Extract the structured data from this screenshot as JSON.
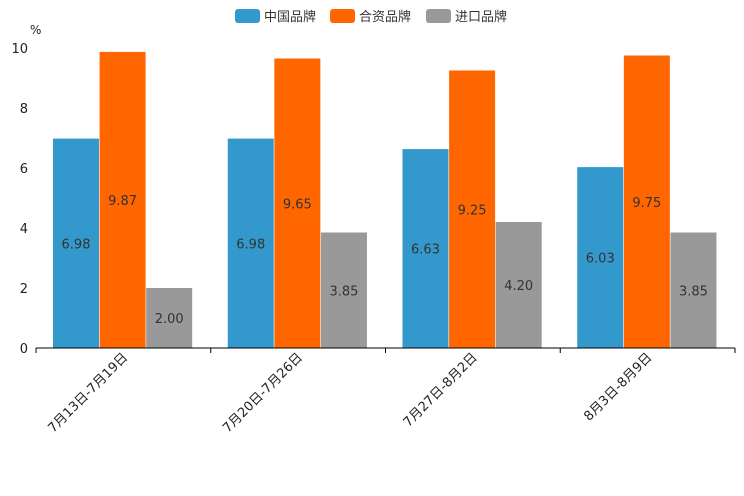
{
  "chart_data": {
    "type": "bar",
    "title": "",
    "xlabel": "",
    "ylabel": "",
    "unit": "%",
    "ylim": [
      0,
      10
    ],
    "yticks": [
      "0",
      "2",
      "4",
      "6",
      "8",
      "10"
    ],
    "categories": [
      "7月13日-7月19日",
      "7月20日-7月26日",
      "7月27日-8月2日",
      "8月3日-8月9日"
    ],
    "series": [
      {
        "name": "中国品牌",
        "color": "#3399cc",
        "values": [
          6.98,
          6.98,
          6.63,
          6.03
        ],
        "labels": [
          "6.98",
          "6.98",
          "6.63",
          "6.03"
        ]
      },
      {
        "name": "合资品牌",
        "color": "#ff6600",
        "values": [
          9.87,
          9.65,
          9.25,
          9.75
        ],
        "labels": [
          "9.87",
          "9.65",
          "9.25",
          "9.75"
        ]
      },
      {
        "name": "进口品牌",
        "color": "#999999",
        "values": [
          2.0,
          3.85,
          4.2,
          3.85
        ],
        "labels": [
          "2.00",
          "3.85",
          "4.20",
          "3.85"
        ]
      }
    ],
    "legend_position": "top-center",
    "grid": false
  }
}
